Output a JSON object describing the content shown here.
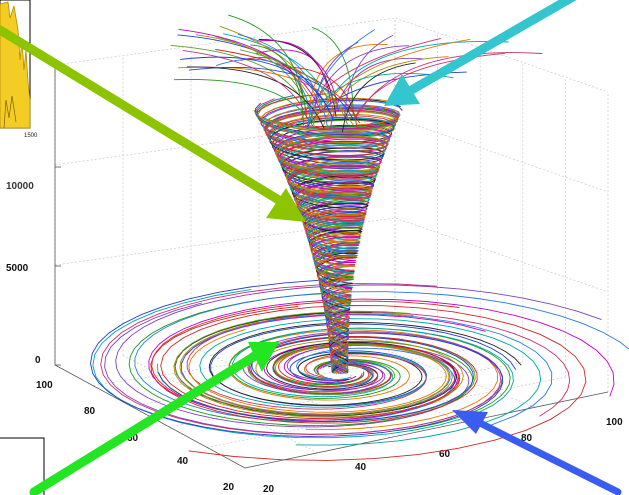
{
  "plot": {
    "z_ticks": [
      "5000",
      "0"
    ],
    "z_tick_partial": "10000",
    "y_ticks": [
      "100",
      "80",
      "60",
      "40",
      "20"
    ],
    "x_ticks": [
      "20",
      "40",
      "60",
      "80",
      "100"
    ],
    "inset_tick": "1500"
  },
  "colors": {
    "arrow_green_yellow": "#8cc400",
    "arrow_cyan": "#34c6cf",
    "arrow_green": "#22e622",
    "arrow_blue": "#3a5cf0",
    "inset_fill": "#f4cd24",
    "streamline_palette": [
      "#1f3fd0",
      "#d02828",
      "#1a9a1a",
      "#c400c4",
      "#00a6a6",
      "#222222",
      "#e07a00",
      "#7f3fbf",
      "#2a7ae0",
      "#c8326e",
      "#5aa02a",
      "#b08a00"
    ]
  },
  "icons": [
    "arrow-green-yellow-icon",
    "arrow-cyan-icon",
    "arrow-green-icon",
    "arrow-blue-icon"
  ]
}
